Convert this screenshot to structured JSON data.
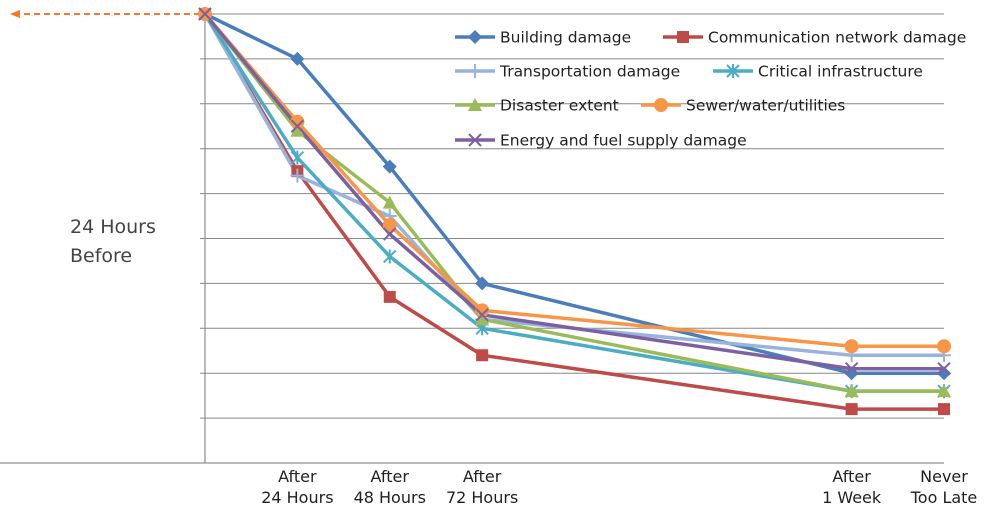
{
  "chart_data": {
    "type": "line",
    "categories": [
      "24 Hours\nBefore",
      "After\n24 Hours",
      "After\n48 Hours",
      "After\n72 Hours",
      null,
      null,
      null,
      "After\n1 Week",
      "Never\nToo Late"
    ],
    "connect_gaps": true,
    "ylim": [
      0,
      10
    ],
    "ygrid": [
      1,
      2,
      3,
      4,
      5,
      6,
      7,
      8,
      9,
      10
    ],
    "series": [
      {
        "name": "Building damage",
        "color": "#4a7ebb",
        "marker": "diamond",
        "values": [
          10,
          9.0,
          6.6,
          4.0,
          null,
          null,
          null,
          2.0,
          2.0
        ]
      },
      {
        "name": "Communication network damage",
        "color": "#be4b48",
        "marker": "square",
        "values": [
          10,
          6.5,
          3.7,
          2.4,
          null,
          null,
          null,
          1.2,
          1.2
        ]
      },
      {
        "name": "Transportation damage",
        "color": "#98b3dd",
        "marker": "plus",
        "values": [
          10,
          6.4,
          5.5,
          3.2,
          null,
          null,
          null,
          2.4,
          2.4
        ]
      },
      {
        "name": "Critical infrastructure",
        "color": "#4bacc6",
        "marker": "asterisk",
        "values": [
          10,
          6.8,
          4.6,
          3.0,
          null,
          null,
          null,
          1.6,
          1.6
        ]
      },
      {
        "name": "Disaster extent",
        "color": "#9bbb59",
        "marker": "triangle",
        "values": [
          10,
          7.4,
          5.8,
          3.2,
          null,
          null,
          null,
          1.6,
          1.6
        ]
      },
      {
        "name": "Sewer/water/utilities",
        "color": "#f79646",
        "marker": "circle",
        "values": [
          10,
          7.6,
          5.3,
          3.4,
          null,
          null,
          null,
          2.6,
          2.6
        ]
      },
      {
        "name": "Energy and fuel supply damage",
        "color": "#7d60a0",
        "marker": "x",
        "values": [
          10,
          7.5,
          5.1,
          3.3,
          null,
          null,
          null,
          2.1,
          2.1
        ]
      }
    ]
  }
}
